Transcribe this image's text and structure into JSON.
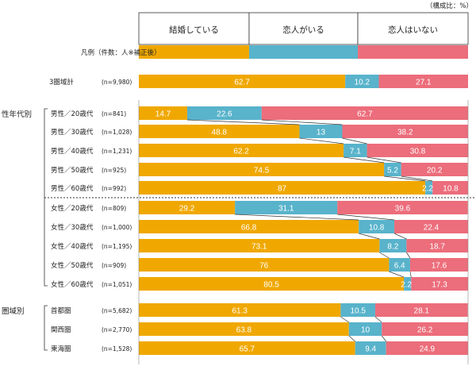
{
  "chart_data": {
    "type": "bar",
    "stacked": "100%",
    "orientation": "horizontal",
    "unit_note": "（構成比：%）",
    "legend_label": "凡例（件数：人※補正後）",
    "colors": {
      "married": "#f0a800",
      "partner": "#58b3cb",
      "none": "#ec6d7b"
    },
    "series_names": [
      "結婚している",
      "恋人がいる",
      "恋人はいない"
    ],
    "total": {
      "label": "3圏域計",
      "n": "(n=9,980)",
      "values": [
        62.7,
        10.2,
        27.1
      ]
    },
    "groups": [
      {
        "title": "性年代別",
        "rows": [
          {
            "label": "男性／20歳代",
            "n": "(n=841)",
            "values": [
              14.7,
              22.6,
              62.7
            ]
          },
          {
            "label": "男性／30歳代",
            "n": "(n=1,028)",
            "values": [
              48.8,
              13.0,
              38.2
            ]
          },
          {
            "label": "男性／40歳代",
            "n": "(n=1,231)",
            "values": [
              62.2,
              7.1,
              30.8
            ]
          },
          {
            "label": "男性／50歳代",
            "n": "(n=925)",
            "values": [
              74.5,
              5.2,
              20.2
            ]
          },
          {
            "label": "男性／60歳代",
            "n": "(n=992)",
            "values": [
              87.0,
              2.2,
              10.8
            ]
          },
          {
            "label": "女性／20歳代",
            "n": "(n=809)",
            "values": [
              29.2,
              31.1,
              39.6
            ]
          },
          {
            "label": "女性／30歳代",
            "n": "(n=1,000)",
            "values": [
              66.8,
              10.8,
              22.4
            ]
          },
          {
            "label": "女性／40歳代",
            "n": "(n=1,195)",
            "values": [
              73.1,
              8.2,
              18.7
            ]
          },
          {
            "label": "女性／50歳代",
            "n": "(n=909)",
            "values": [
              76.0,
              6.4,
              17.6
            ]
          },
          {
            "label": "女性／60歳代",
            "n": "(n=1,051)",
            "values": [
              80.5,
              2.2,
              17.3
            ]
          }
        ]
      },
      {
        "title": "圏域別",
        "rows": [
          {
            "label": "首都圏",
            "n": "(n=5,682)",
            "values": [
              61.3,
              10.5,
              28.1
            ]
          },
          {
            "label": "関西圏",
            "n": "(n=2,770)",
            "values": [
              63.8,
              10.0,
              26.2
            ]
          },
          {
            "label": "東海圏",
            "n": "(n=1,528)",
            "values": [
              65.7,
              9.4,
              24.9
            ]
          }
        ]
      }
    ]
  }
}
